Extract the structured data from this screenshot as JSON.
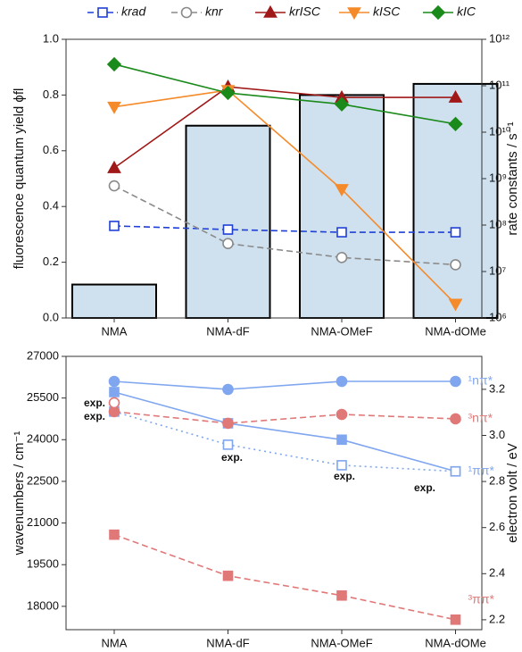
{
  "chart_data": [
    {
      "type": "bar",
      "categories": [
        "NMA",
        "NMA-dF",
        "NMA-OMeF",
        "NMA-dOMe"
      ],
      "values": [
        0.12,
        0.69,
        0.8,
        0.84
      ],
      "color": "#cfe1ef",
      "ylabel": "fluorescence quantum yield ϕfl",
      "y2label": "rate constants / s⁻¹",
      "ylim": [
        0,
        1
      ],
      "yticks": [
        {
          "value": 0,
          "label": "0.0"
        },
        0.2,
        0.4,
        0.6,
        0.8,
        {
          "value": 1,
          "label": "1.0"
        }
      ],
      "y2lim": [
        1000000,
        1000000000000
      ],
      "y2ticks": [
        {
          "value": 1000000,
          "label": "10⁶"
        },
        {
          "value": 10000000,
          "label": "10⁷"
        },
        {
          "value": 100000000,
          "label": "10⁸"
        },
        {
          "value": 1000000000,
          "label": "10⁹"
        },
        {
          "value": 10000000000,
          "label": "10¹⁰"
        },
        {
          "value": 100000000000,
          "label": "10¹¹"
        },
        {
          "value": 1000000000000,
          "label": "10¹²"
        }
      ],
      "y2log": true,
      "legend": "top",
      "series": [
        {
          "name": "krad",
          "color": "#1f3fd6",
          "marker": "square",
          "filled": false,
          "dash": "dashed",
          "axis": "y2",
          "values": [
            96000000,
            80000000,
            70000000,
            70000000
          ]
        },
        {
          "name": "knr",
          "color": "#8a8a8a",
          "marker": "circle",
          "filled": false,
          "dash": "dashed",
          "axis": "y2",
          "values": [
            700000000,
            40000000,
            20000000,
            14000000
          ]
        },
        {
          "name": "krISC",
          "color": "#a01818",
          "marker": "triangle",
          "filled": true,
          "dash": "solid",
          "axis": "y2",
          "values": [
            1700000000,
            95000000000,
            56000000000,
            56000000000
          ]
        },
        {
          "name": "kISC",
          "color": "#f58a2a",
          "marker": "triangle-down",
          "filled": true,
          "dash": "solid",
          "axis": "y2",
          "values": [
            35000000000,
            80000000000,
            590000000,
            2000000
          ]
        },
        {
          "name": "kIC",
          "color": "#1a8a1a",
          "marker": "diamond",
          "filled": true,
          "dash": "solid",
          "axis": "y2",
          "values": [
            290000000000,
            70000000000,
            40000000000,
            15000000000
          ]
        }
      ]
    },
    {
      "type": "line",
      "categories": [
        "NMA",
        "NMA-dF",
        "NMA-OMeF",
        "NMA-dOMe"
      ],
      "ylabel": "wavenumbers / cm⁻¹",
      "y2label": "electron volt / eV",
      "ylim": [
        17160,
        27000
      ],
      "yticks": [
        18000,
        19500,
        21000,
        22500,
        24000,
        25500,
        27000
      ],
      "y2lim": [
        2.157,
        3.343
      ],
      "y2ticks": [
        2.2,
        2.4,
        2.6,
        2.8,
        {
          "value": 3,
          "label": "3.0"
        },
        3.2
      ],
      "annotations": [
        "exp.",
        "exp.",
        "exp.",
        "exp.",
        "exp."
      ],
      "series": [
        {
          "name": "¹nπ*",
          "color": "#7fa6ef",
          "marker": "circle",
          "filled": true,
          "dash": "solid",
          "values": [
            26100,
            25810,
            26100,
            26100
          ]
        },
        {
          "name": "¹ππ*",
          "color": "#7fa6ef",
          "marker": "square",
          "filled": true,
          "dash": "solid",
          "values": [
            25715,
            24590,
            24000,
            22860
          ]
        },
        {
          "color": "#7fa6ef",
          "marker": "square",
          "filled": false,
          "dash": "dotted",
          "values": [
            25010,
            23820,
            23080,
            22860
          ]
        },
        {
          "name": "³nπ*",
          "color": "#e07878",
          "marker": "circle",
          "filled": true,
          "dash": "dashed",
          "values": [
            25010,
            24590,
            24910,
            24750
          ]
        },
        {
          "color": "#e07878",
          "marker": "circle",
          "filled": false,
          "dash": "none",
          "values": [
            25330,
            null,
            null,
            null
          ]
        },
        {
          "name": "³ππ*",
          "color": "#e07878",
          "marker": "square",
          "filled": true,
          "dash": "dashed",
          "values": [
            20580,
            19100,
            18390,
            17520
          ]
        }
      ]
    }
  ]
}
